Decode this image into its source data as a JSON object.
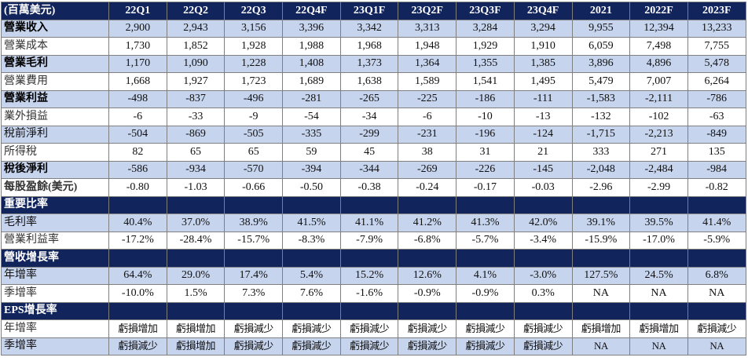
{
  "header": {
    "label": "(百萬美元)",
    "columns": [
      "22Q1",
      "22Q2",
      "22Q3",
      "22Q4F",
      "23Q1F",
      "23Q2F",
      "23Q3F",
      "23Q4F",
      "2021",
      "2022F",
      "2023F"
    ]
  },
  "income": [
    {
      "label": "營業收入",
      "bold": true,
      "shade": "blue",
      "values": [
        "2,900",
        "2,943",
        "3,156",
        "3,396",
        "3,342",
        "3,313",
        "3,284",
        "3,294",
        "9,955",
        "12,394",
        "13,233"
      ]
    },
    {
      "label": "營業成本",
      "bold": false,
      "shade": "white",
      "values": [
        "1,730",
        "1,852",
        "1,928",
        "1,988",
        "1,968",
        "1,948",
        "1,929",
        "1,910",
        "6,059",
        "7,498",
        "7,755"
      ]
    },
    {
      "label": "營業毛利",
      "bold": true,
      "shade": "blue",
      "values": [
        "1,170",
        "1,090",
        "1,228",
        "1,408",
        "1,373",
        "1,364",
        "1,355",
        "1,385",
        "3,896",
        "4,896",
        "5,478"
      ]
    },
    {
      "label": "營業費用",
      "bold": false,
      "shade": "white",
      "values": [
        "1,668",
        "1,927",
        "1,723",
        "1,689",
        "1,638",
        "1,589",
        "1,541",
        "1,495",
        "5,479",
        "7,007",
        "6,264"
      ]
    },
    {
      "label": "營業利益",
      "bold": true,
      "shade": "blue",
      "values": [
        "-498",
        "-837",
        "-496",
        "-281",
        "-265",
        "-225",
        "-186",
        "-111",
        "-1,583",
        "-2,111",
        "-786"
      ]
    },
    {
      "label": "業外損益",
      "bold": false,
      "shade": "white",
      "values": [
        "-6",
        "-33",
        "-9",
        "-54",
        "-34",
        "-6",
        "-10",
        "-13",
        "-132",
        "-102",
        "-63"
      ]
    },
    {
      "label": "稅前淨利",
      "bold": false,
      "shade": "blue",
      "values": [
        "-504",
        "-869",
        "-505",
        "-335",
        "-299",
        "-231",
        "-196",
        "-124",
        "-1,715",
        "-2,213",
        "-849"
      ]
    },
    {
      "label": "所得稅",
      "bold": false,
      "shade": "white",
      "values": [
        "82",
        "65",
        "65",
        "59",
        "45",
        "38",
        "31",
        "21",
        "333",
        "271",
        "135"
      ]
    },
    {
      "label": "稅後淨利",
      "bold": true,
      "shade": "blue",
      "values": [
        "-586",
        "-934",
        "-570",
        "-394",
        "-344",
        "-269",
        "-226",
        "-145",
        "-2,048",
        "-2,484",
        "-984"
      ]
    },
    {
      "label": "每股盈餘(美元)",
      "bold": true,
      "shade": "white",
      "values": [
        "-0.80",
        "-1.03",
        "-0.66",
        "-0.50",
        "-0.38",
        "-0.24",
        "-0.17",
        "-0.03",
        "-2.96",
        "-2.99",
        "-0.82"
      ]
    }
  ],
  "ratios": {
    "title": "重要比率",
    "rows": [
      {
        "label": "毛利率",
        "shade": "blue",
        "values": [
          "40.4%",
          "37.0%",
          "38.9%",
          "41.5%",
          "41.1%",
          "41.2%",
          "41.3%",
          "42.0%",
          "39.1%",
          "39.5%",
          "41.4%"
        ]
      },
      {
        "label": "營業利益率",
        "shade": "white",
        "values": [
          "-17.2%",
          "-28.4%",
          "-15.7%",
          "-8.3%",
          "-7.9%",
          "-6.8%",
          "-5.7%",
          "-3.4%",
          "-15.9%",
          "-17.0%",
          "-5.9%"
        ]
      }
    ]
  },
  "revenue_growth": {
    "title": "營收增長率",
    "rows": [
      {
        "label": "年增率",
        "shade": "blue",
        "values": [
          "64.4%",
          "29.0%",
          "17.4%",
          "5.4%",
          "15.2%",
          "12.6%",
          "4.1%",
          "-3.0%",
          "127.5%",
          "24.5%",
          "6.8%"
        ]
      },
      {
        "label": "季增率",
        "shade": "white",
        "values": [
          "-10.0%",
          "1.5%",
          "7.3%",
          "7.6%",
          "-1.6%",
          "-0.9%",
          "-0.9%",
          "0.3%",
          "NA",
          "NA",
          "NA"
        ]
      }
    ]
  },
  "eps_growth": {
    "title": "EPS增長率",
    "rows": [
      {
        "label": "年增率",
        "shade": "white",
        "values": [
          "虧損增加",
          "虧損增加",
          "虧損減少",
          "虧損減少",
          "虧損減少",
          "虧損減少",
          "虧損減少",
          "虧損減少",
          "虧損增加",
          "虧損增加",
          "虧損減少"
        ]
      },
      {
        "label": "季增率",
        "shade": "blue",
        "values": [
          "虧損減少",
          "虧損增加",
          "虧損減少",
          "虧損減少",
          "虧損減少",
          "虧損減少",
          "虧損減少",
          "虧損減少",
          "NA",
          "NA",
          "NA"
        ]
      }
    ]
  }
}
